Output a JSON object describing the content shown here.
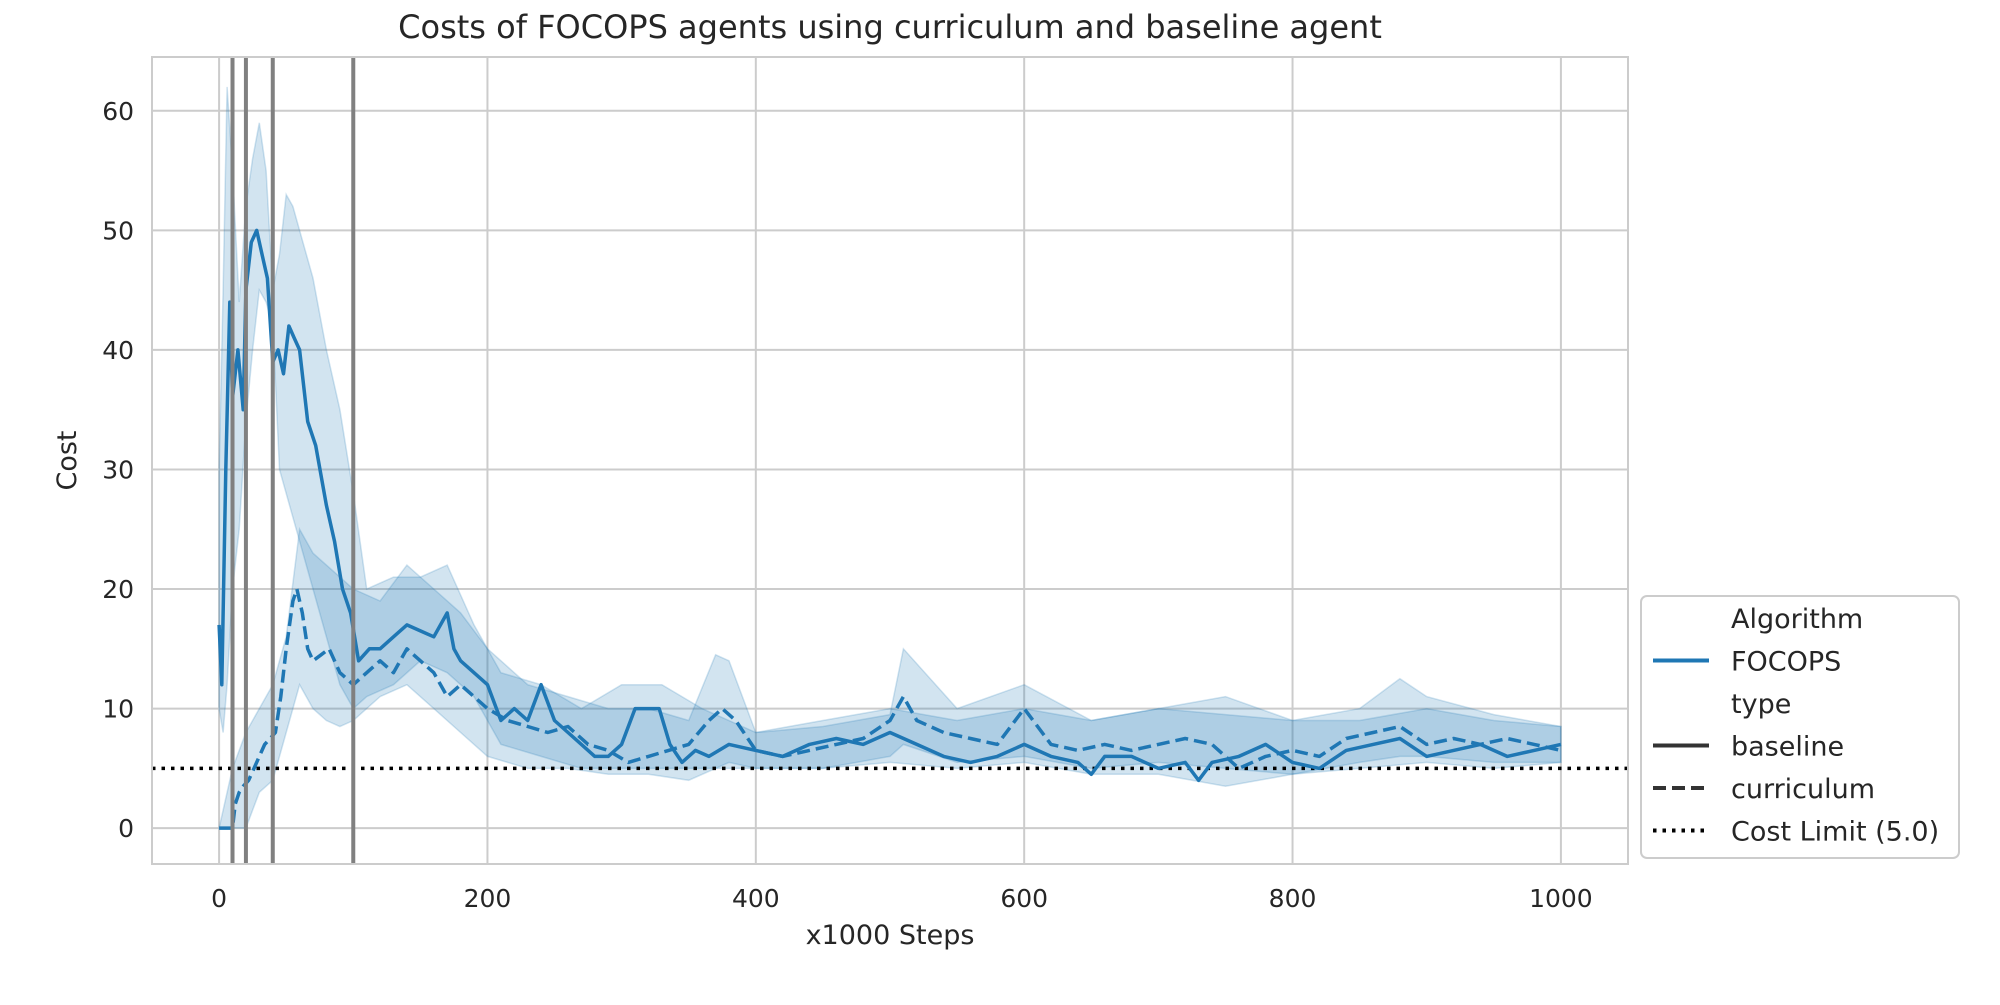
{
  "chart_data": {
    "type": "line",
    "title": "Costs of FOCOPS agents using curriculum and baseline agent",
    "xlabel": "x1000 Steps",
    "ylabel": "Cost",
    "xlim": [
      -50,
      1050
    ],
    "ylim": [
      -3,
      64.5
    ],
    "x_ticks": [
      0,
      200,
      400,
      600,
      800,
      1000
    ],
    "y_ticks": [
      0,
      10,
      20,
      30,
      40,
      50,
      60
    ],
    "grid": true,
    "legend_position": "lower-right",
    "legend": {
      "entries": [
        {
          "label": "Algorithm",
          "style": "header"
        },
        {
          "label": "FOCOPS",
          "style": "color"
        },
        {
          "label": "type",
          "style": "header"
        },
        {
          "label": "baseline",
          "style": "solid"
        },
        {
          "label": "curriculum",
          "style": "dashed"
        },
        {
          "label": "Cost Limit (5.0)",
          "style": "dotted"
        }
      ]
    },
    "cost_limit": 5.0,
    "curriculum_stage_lines_x": [
      10,
      20,
      40,
      100
    ],
    "colors": {
      "line": "#1f77b4",
      "band": "#1f77b4",
      "stage_line": "#808080",
      "limit_line": "#000000",
      "grid": "#cccccc",
      "axes_edge": "#cccccc"
    },
    "series": [
      {
        "name": "baseline",
        "style": "solid",
        "x": [
          0,
          2,
          5,
          8,
          10,
          14,
          18,
          20,
          24,
          28,
          32,
          36,
          40,
          44,
          48,
          52,
          56,
          60,
          66,
          72,
          80,
          86,
          92,
          98,
          104,
          112,
          120,
          130,
          140,
          150,
          160,
          170,
          175,
          180,
          190,
          200,
          210,
          220,
          230,
          240,
          250,
          260,
          270,
          280,
          290,
          300,
          310,
          320,
          328,
          336,
          345,
          355,
          365,
          380,
          400,
          420,
          440,
          460,
          480,
          500,
          520,
          540,
          560,
          580,
          600,
          620,
          640,
          650,
          660,
          680,
          700,
          720,
          730,
          740,
          760,
          780,
          800,
          820,
          840,
          860,
          880,
          900,
          920,
          940,
          960,
          980,
          1000
        ],
        "y": [
          17,
          12,
          30,
          44,
          36,
          40,
          35,
          45,
          49,
          50,
          48,
          46,
          39,
          40,
          38,
          42,
          41,
          40,
          34,
          32,
          27,
          24,
          20,
          18,
          14,
          15,
          15,
          16,
          17,
          16.5,
          16,
          18,
          15,
          14,
          13,
          12,
          9,
          10,
          9,
          12,
          9,
          8,
          7,
          6,
          6,
          7,
          10,
          10,
          10,
          7,
          5.5,
          6.5,
          6,
          7,
          6.5,
          6,
          7,
          7.5,
          7,
          8,
          7,
          6,
          5.5,
          6,
          7,
          6,
          5.5,
          4.5,
          6,
          6,
          5,
          5.5,
          4,
          5.5,
          6,
          7,
          5.5,
          5,
          6.5,
          7,
          7.5,
          6,
          6.5,
          7,
          6,
          6.5,
          7
        ]
      },
      {
        "name": "curriculum",
        "style": "dashed",
        "x": [
          0,
          5,
          10,
          12,
          15,
          18,
          22,
          26,
          30,
          34,
          38,
          42,
          46,
          50,
          55,
          58,
          62,
          66,
          70,
          76,
          82,
          90,
          100,
          110,
          120,
          130,
          140,
          150,
          160,
          170,
          180,
          190,
          200,
          215,
          230,
          245,
          260,
          275,
          290,
          305,
          320,
          335,
          350,
          365,
          375,
          385,
          400,
          420,
          440,
          460,
          480,
          500,
          510,
          520,
          540,
          560,
          580,
          600,
          620,
          640,
          660,
          680,
          700,
          720,
          740,
          760,
          780,
          800,
          820,
          840,
          860,
          880,
          900,
          920,
          940,
          960,
          980,
          1000
        ],
        "y": [
          0,
          0,
          0,
          2,
          3,
          3.5,
          4,
          5,
          6,
          7,
          7.5,
          8,
          11,
          15,
          19,
          20,
          18,
          15,
          14,
          14.5,
          15,
          13,
          12,
          13,
          14,
          13,
          15,
          14,
          13,
          11,
          12,
          11,
          10,
          9,
          8.5,
          8,
          8.5,
          7,
          6.5,
          5.5,
          6,
          6.5,
          7,
          9,
          10,
          9,
          6.5,
          6,
          6.5,
          7,
          7.5,
          9,
          11,
          9,
          8,
          7.5,
          7,
          10,
          7,
          6.5,
          7,
          6.5,
          7,
          7.5,
          7,
          5,
          6,
          6.5,
          6,
          7.5,
          8,
          8.5,
          7,
          7.5,
          7,
          7.5,
          7,
          6.5
        ]
      }
    ],
    "bands": [
      {
        "name": "baseline",
        "x": [
          0,
          3,
          6,
          10,
          15,
          20,
          25,
          30,
          35,
          40,
          45,
          50,
          55,
          60,
          70,
          80,
          90,
          100,
          110,
          130,
          150,
          170,
          190,
          210,
          240,
          270,
          300,
          330,
          360,
          400,
          450,
          500,
          550,
          600,
          650,
          700,
          750,
          800,
          850,
          900,
          950,
          1000
        ],
        "lo": [
          10,
          8,
          12,
          20,
          25,
          34,
          40,
          45,
          44,
          42,
          30,
          28,
          26,
          24,
          20,
          16,
          12,
          10,
          11,
          12,
          14,
          13,
          11,
          7,
          6,
          5,
          5,
          5,
          5,
          5,
          5,
          5.5,
          5,
          5.5,
          4.5,
          4.5,
          3.5,
          4.5,
          5,
          5.5,
          5,
          5.5
        ],
        "hi": [
          30,
          45,
          62,
          55,
          44,
          52,
          56,
          59,
          55,
          45,
          48,
          53,
          52,
          50,
          46,
          40,
          35,
          28,
          20,
          21,
          21,
          22,
          17,
          13,
          12,
          10,
          12,
          12,
          10,
          8,
          9,
          10,
          9,
          10,
          9,
          10,
          11,
          9,
          9,
          10,
          9,
          8.5
        ]
      },
      {
        "name": "curriculum",
        "x": [
          0,
          10,
          20,
          30,
          40,
          50,
          60,
          70,
          80,
          90,
          100,
          120,
          140,
          160,
          180,
          200,
          230,
          260,
          290,
          320,
          350,
          370,
          380,
          400,
          450,
          500,
          510,
          550,
          600,
          650,
          700,
          750,
          800,
          850,
          880,
          900,
          950,
          1000
        ],
        "lo": [
          0,
          0,
          0,
          3,
          4,
          8,
          12,
          10,
          9,
          8.5,
          9,
          11,
          12,
          10,
          8,
          6,
          5,
          5,
          4.5,
          4.5,
          4,
          5,
          5.5,
          5,
          5,
          6,
          7,
          5.5,
          6,
          5,
          5.5,
          5,
          4.5,
          5.5,
          6,
          6,
          5.5,
          5.5
        ],
        "hi": [
          0,
          5,
          8,
          10,
          12,
          16,
          25,
          23,
          22,
          21,
          20,
          19,
          22,
          20,
          18,
          15,
          12,
          11,
          10,
          10,
          9,
          14.5,
          14,
          8,
          8.5,
          9.5,
          15,
          10,
          12,
          9,
          10,
          9.5,
          9,
          10,
          12.5,
          11,
          9.5,
          8.5
        ]
      }
    ]
  }
}
